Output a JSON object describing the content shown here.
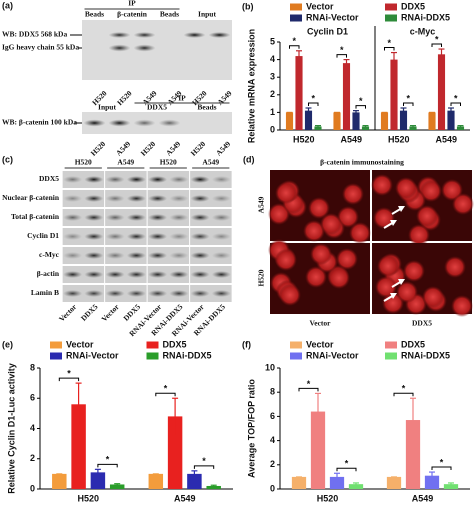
{
  "panel_a": {
    "label": "(a)",
    "top": {
      "ip": "IP",
      "headers": [
        "Beads",
        "β-catenin",
        "Beads",
        "Input"
      ],
      "wb": "WB: DDX5 568 kDa",
      "igg": "IgG heavy chain 55 kDa",
      "lanes": [
        "H520",
        "H520",
        "A549",
        "A549",
        "H520",
        "A549"
      ]
    },
    "bottom": {
      "ip": "IP",
      "headers": [
        "Input",
        "DDX5",
        "Beads"
      ],
      "wb": "WB: β-catenin 100 kDa",
      "lanes": [
        "H520",
        "A549",
        "H520",
        "A549",
        "H520",
        "A549"
      ]
    }
  },
  "panel_c": {
    "label": "(c)",
    "cells": [
      "H520",
      "A549",
      "H520",
      "A549"
    ],
    "rows": [
      "DDX5",
      "Nuclear β-catenin",
      "Total β-catenin",
      "Cyclin D1",
      "c-Myc",
      "β-actin",
      "Lamin B"
    ],
    "lanes": [
      "Vector",
      "DDX5",
      "Vector",
      "DDX5",
      "RNAi-Vector",
      "RNAi-DDX5",
      "RNAi-Vector",
      "RNAi-DDX5"
    ]
  },
  "panel_d": {
    "label": "(d)",
    "title": "β-catenin immunostaining",
    "rows": [
      "A549",
      "H520"
    ],
    "columns": [
      "Vector",
      "DDX5"
    ]
  },
  "chart_data": [
    {
      "type": "bar",
      "panel_label": "(b)",
      "y_label": "Relative mRNA expression",
      "categories": [
        "H520",
        "A549",
        "H520",
        "A549"
      ],
      "group_labels": [
        "Cyclin D1",
        "c-Myc"
      ],
      "ylim": [
        0,
        5
      ],
      "yticks": [
        0,
        1,
        2,
        3,
        4,
        5
      ],
      "significance": "*",
      "series": [
        {
          "name": "Vector",
          "color": "#e07b20",
          "values": [
            1,
            1,
            1,
            1
          ],
          "errors": [
            0,
            0,
            0,
            0
          ]
        },
        {
          "name": "DDX5",
          "color": "#c0282d",
          "values": [
            4.2,
            3.8,
            4.0,
            4.3
          ],
          "errors": [
            0.3,
            0.2,
            0.4,
            0.3
          ]
        },
        {
          "name": "RNAi-Vector",
          "color": "#1f2a6b",
          "values": [
            1.1,
            1.0,
            1.1,
            1.1
          ],
          "errors": [
            0.15,
            0.1,
            0.15,
            0.15
          ]
        },
        {
          "name": "RNAi-DDX5",
          "color": "#2e8b3a",
          "values": [
            0.2,
            0.2,
            0.2,
            0.2
          ],
          "errors": [
            0.05,
            0.05,
            0.05,
            0.05
          ]
        }
      ]
    },
    {
      "type": "bar",
      "panel_label": "(e)",
      "y_label": "Relative Cyclin D1-Luc activity",
      "categories": [
        "H520",
        "A549"
      ],
      "ylim": [
        0,
        8
      ],
      "yticks": [
        0,
        2,
        4,
        6,
        8
      ],
      "significance": "*",
      "series": [
        {
          "name": "Vector",
          "color": "#f39c3c",
          "values": [
            1,
            1
          ],
          "errors": [
            0,
            0
          ]
        },
        {
          "name": "DDX5",
          "color": "#e8211f",
          "values": [
            5.6,
            4.8
          ],
          "errors": [
            1.4,
            1.2
          ]
        },
        {
          "name": "RNAi-Vector",
          "color": "#2b2bb0",
          "values": [
            1.1,
            1.0
          ],
          "errors": [
            0.2,
            0.2
          ]
        },
        {
          "name": "RNAi-DDX5",
          "color": "#2a9d2a",
          "values": [
            0.3,
            0.2
          ],
          "errors": [
            0.05,
            0.05
          ]
        }
      ]
    },
    {
      "type": "bar",
      "panel_label": "(f)",
      "y_label": "Average TOP/FOP ratio",
      "categories": [
        "H520",
        "A549"
      ],
      "ylim": [
        0,
        10
      ],
      "yticks": [
        0,
        2,
        4,
        6,
        8,
        10
      ],
      "significance": "*",
      "series": [
        {
          "name": "Vector",
          "color": "#f5b06a",
          "values": [
            1,
            1
          ],
          "errors": [
            0,
            0
          ]
        },
        {
          "name": "DDX5",
          "color": "#f08080",
          "values": [
            6.4,
            5.7
          ],
          "errors": [
            1.5,
            1.8
          ]
        },
        {
          "name": "RNAi-Vector",
          "color": "#7070f0",
          "values": [
            1.0,
            1.1
          ],
          "errors": [
            0.3,
            0.3
          ]
        },
        {
          "name": "RNAi-DDX5",
          "color": "#70e070",
          "values": [
            0.4,
            0.4
          ],
          "errors": [
            0.1,
            0.1
          ]
        }
      ]
    }
  ]
}
